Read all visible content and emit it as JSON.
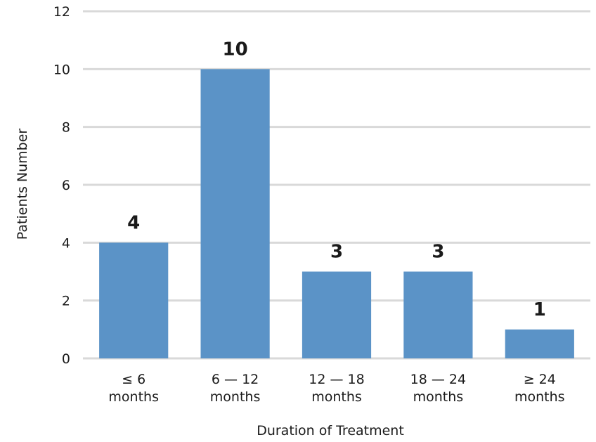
{
  "chart_data": {
    "type": "bar",
    "categories": [
      [
        "≤ 6",
        "months"
      ],
      [
        "6 — 12",
        "months"
      ],
      [
        "12 — 18",
        "months"
      ],
      [
        "18 — 24",
        "months"
      ],
      [
        "≥ 24",
        "months"
      ]
    ],
    "values": [
      4,
      10,
      3,
      3,
      1
    ],
    "data_labels": [
      "4",
      "10",
      "3",
      "3",
      "1"
    ],
    "yticks": [
      "0",
      "2",
      "4",
      "6",
      "8",
      "10",
      "12"
    ],
    "ylim": [
      0,
      12
    ],
    "xlabel": "Duration of Treatment",
    "ylabel": "Patients Number",
    "grid": true,
    "colors": {
      "bar": "#5b93c7",
      "grid": "#d9d9d9"
    }
  }
}
